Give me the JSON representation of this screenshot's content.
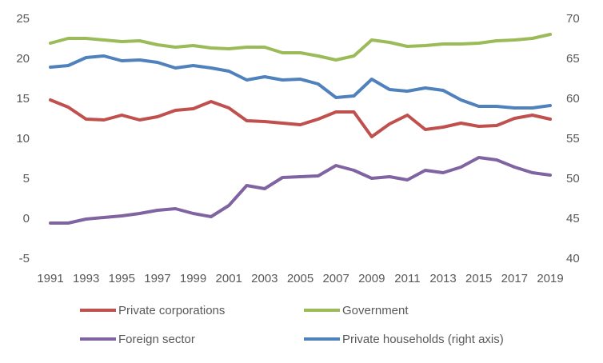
{
  "chart_data": {
    "type": "line",
    "title": "",
    "xlabel": "",
    "ylabel": "",
    "x": [
      1991,
      1992,
      1993,
      1994,
      1995,
      1996,
      1997,
      1998,
      1999,
      2000,
      2001,
      2002,
      2003,
      2004,
      2005,
      2006,
      2007,
      2008,
      2009,
      2010,
      2011,
      2012,
      2013,
      2014,
      2015,
      2016,
      2017,
      2018,
      2019
    ],
    "x_tick_labels": [
      "1991",
      "1993",
      "1995",
      "1997",
      "1999",
      "2001",
      "2003",
      "2005",
      "2007",
      "2009",
      "2011",
      "2013",
      "2015",
      "2017",
      "2019"
    ],
    "left_axis": {
      "ylim": [
        -5,
        25
      ],
      "ticks": [
        "-5",
        "0",
        "5",
        "10",
        "15",
        "20",
        "25"
      ]
    },
    "right_axis": {
      "ylim": [
        40,
        70
      ],
      "ticks": [
        "40",
        "45",
        "50",
        "55",
        "60",
        "65",
        "70"
      ]
    },
    "grid": false,
    "legend_position": "bottom",
    "series": [
      {
        "name": "Private corporations",
        "axis": "left",
        "color": "#c0504d",
        "values": [
          14.8,
          13.9,
          12.4,
          12.3,
          12.9,
          12.3,
          12.7,
          13.5,
          13.7,
          14.6,
          13.8,
          12.2,
          12.1,
          11.9,
          11.7,
          12.4,
          13.3,
          13.3,
          10.2,
          11.8,
          12.9,
          11.1,
          11.4,
          11.9,
          11.5,
          11.6,
          12.5,
          12.9,
          12.4
        ]
      },
      {
        "name": "Government",
        "axis": "left",
        "color": "#9bbb59",
        "values": [
          21.9,
          22.5,
          22.5,
          22.3,
          22.1,
          22.2,
          21.7,
          21.4,
          21.6,
          21.3,
          21.2,
          21.4,
          21.4,
          20.7,
          20.7,
          20.3,
          19.8,
          20.3,
          22.3,
          22.0,
          21.5,
          21.6,
          21.8,
          21.8,
          21.9,
          22.2,
          22.3,
          22.5,
          23.0
        ]
      },
      {
        "name": "Foreign sector",
        "axis": "left",
        "color": "#8064a2",
        "values": [
          -0.6,
          -0.6,
          -0.1,
          0.1,
          0.3,
          0.6,
          1.0,
          1.2,
          0.6,
          0.2,
          1.6,
          4.1,
          3.7,
          5.1,
          5.2,
          5.3,
          6.6,
          6.0,
          5.0,
          5.2,
          4.8,
          6.0,
          5.7,
          6.4,
          7.6,
          7.3,
          6.4,
          5.7,
          5.4
        ]
      },
      {
        "name": "Private households (right axis)",
        "axis": "right",
        "color": "#4f81bd",
        "values": [
          63.9,
          64.1,
          65.1,
          65.3,
          64.7,
          64.8,
          64.5,
          63.8,
          64.1,
          63.8,
          63.4,
          62.3,
          62.7,
          62.3,
          62.4,
          61.8,
          60.1,
          60.3,
          62.4,
          61.1,
          60.9,
          61.3,
          61.0,
          59.8,
          59.0,
          59.0,
          58.8,
          58.8,
          59.1
        ]
      }
    ]
  }
}
